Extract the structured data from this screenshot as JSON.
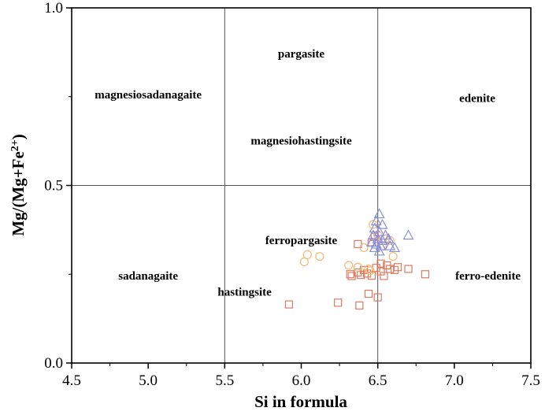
{
  "chart_data": {
    "type": "scatter",
    "title": "",
    "xlabel": "Si in formula",
    "ylabel_main": "Mg/(Mg+Fe",
    "ylabel_sup": "2+",
    "ylabel_close": ")",
    "xlim": [
      4.5,
      7.5
    ],
    "ylim": [
      0.0,
      1.0
    ],
    "x_ticks": [
      "4.5",
      "5.0",
      "5.5",
      "6.0",
      "6.5",
      "7.0",
      "7.5"
    ],
    "y_ticks": [
      "0.0",
      "0.5",
      "1.0"
    ],
    "grid": "dividing lines at Si = 5.5 and 6.5; Mg/(Mg+Fe2+) = 0.5",
    "legend": "none",
    "regions": [
      {
        "label": "pargasite",
        "x": 6.0,
        "y": 0.86
      },
      {
        "label": "magnesiosadanagaite",
        "x": 5.0,
        "y": 0.745
      },
      {
        "label": "edenite",
        "x": 7.15,
        "y": 0.735
      },
      {
        "label": "magnesiohastingsite",
        "x": 6.0,
        "y": 0.615
      },
      {
        "label": "ferropargasite",
        "x": 6.0,
        "y": 0.335
      },
      {
        "label": "sadanagaite",
        "x": 5.0,
        "y": 0.235
      },
      {
        "label": "hastingsite",
        "x": 5.63,
        "y": 0.19
      },
      {
        "label": "ferro-edenite",
        "x": 7.22,
        "y": 0.235
      }
    ],
    "series": [
      {
        "marker": "square",
        "color": "#e07a5f",
        "points": [
          [
            5.92,
            0.165
          ],
          [
            6.24,
            0.17
          ],
          [
            6.44,
            0.195
          ],
          [
            6.5,
            0.185
          ],
          [
            6.38,
            0.162
          ],
          [
            6.32,
            0.25
          ],
          [
            6.33,
            0.245
          ],
          [
            6.37,
            0.255
          ],
          [
            6.39,
            0.248
          ],
          [
            6.41,
            0.262
          ],
          [
            6.43,
            0.252
          ],
          [
            6.46,
            0.246
          ],
          [
            6.49,
            0.268
          ],
          [
            6.52,
            0.258
          ],
          [
            6.54,
            0.245
          ],
          [
            6.56,
            0.275
          ],
          [
            6.58,
            0.265
          ],
          [
            6.61,
            0.262
          ],
          [
            6.63,
            0.27
          ],
          [
            6.7,
            0.265
          ],
          [
            6.81,
            0.25
          ],
          [
            6.37,
            0.335
          ],
          [
            6.52,
            0.28
          ],
          [
            6.46,
            0.34
          ],
          [
            6.48,
            0.355
          ]
        ]
      },
      {
        "marker": "circle",
        "color": "#f5b971",
        "points": [
          [
            6.02,
            0.285
          ],
          [
            6.04,
            0.305
          ],
          [
            6.12,
            0.3
          ],
          [
            6.31,
            0.275
          ],
          [
            6.37,
            0.27
          ],
          [
            6.41,
            0.325
          ],
          [
            6.44,
            0.265
          ],
          [
            6.47,
            0.39
          ],
          [
            6.5,
            0.36
          ],
          [
            6.55,
            0.35
          ],
          [
            6.58,
            0.345
          ],
          [
            6.6,
            0.3
          ],
          [
            6.45,
            0.26
          ],
          [
            6.53,
            0.33
          ]
        ]
      },
      {
        "marker": "triangle",
        "color": "#8a8fd8",
        "points": [
          [
            6.51,
            0.42
          ],
          [
            6.49,
            0.4
          ],
          [
            6.53,
            0.39
          ],
          [
            6.48,
            0.38
          ],
          [
            6.51,
            0.37
          ],
          [
            6.47,
            0.36
          ],
          [
            6.5,
            0.35
          ],
          [
            6.53,
            0.345
          ],
          [
            6.55,
            0.36
          ],
          [
            6.57,
            0.35
          ],
          [
            6.46,
            0.34
          ],
          [
            6.49,
            0.335
          ],
          [
            6.52,
            0.33
          ],
          [
            6.48,
            0.325
          ],
          [
            6.51,
            0.315
          ],
          [
            6.58,
            0.33
          ],
          [
            6.61,
            0.325
          ],
          [
            6.7,
            0.36
          ]
        ]
      }
    ]
  }
}
